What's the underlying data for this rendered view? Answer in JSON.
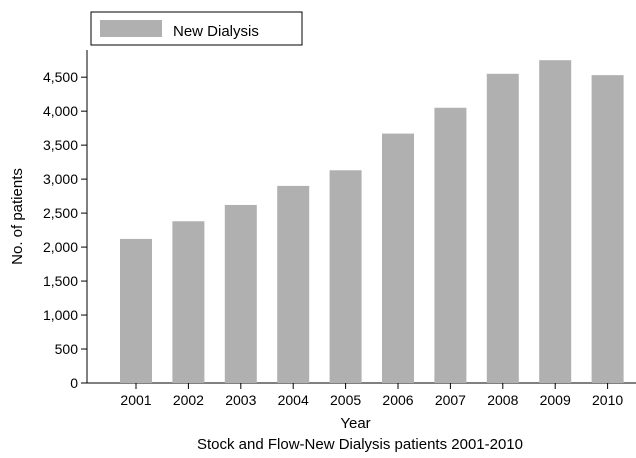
{
  "chart_data": {
    "type": "bar",
    "caption": "Stock and Flow-New Dialysis patients 2001-2010",
    "xlabel": "Year",
    "ylabel": "No. of patients",
    "categories": [
      "2001",
      "2002",
      "2003",
      "2004",
      "2005",
      "2006",
      "2007",
      "2008",
      "2009",
      "2010"
    ],
    "series": [
      {
        "name": "New Dialysis",
        "color": "#b0b0b0",
        "values": [
          2120,
          2380,
          2620,
          2900,
          3130,
          3670,
          4050,
          4550,
          4750,
          4530
        ]
      }
    ],
    "ylim": [
      0,
      4900
    ],
    "yticks": [
      0,
      500,
      1000,
      1500,
      2000,
      2500,
      3000,
      3500,
      4000,
      4500
    ],
    "ytick_labels": [
      "0",
      "500",
      "1,000",
      "1,500",
      "2,000",
      "2,500",
      "3,000",
      "3,500",
      "4,000",
      "4,500"
    ],
    "legend_position": "top-left",
    "grid": false
  }
}
